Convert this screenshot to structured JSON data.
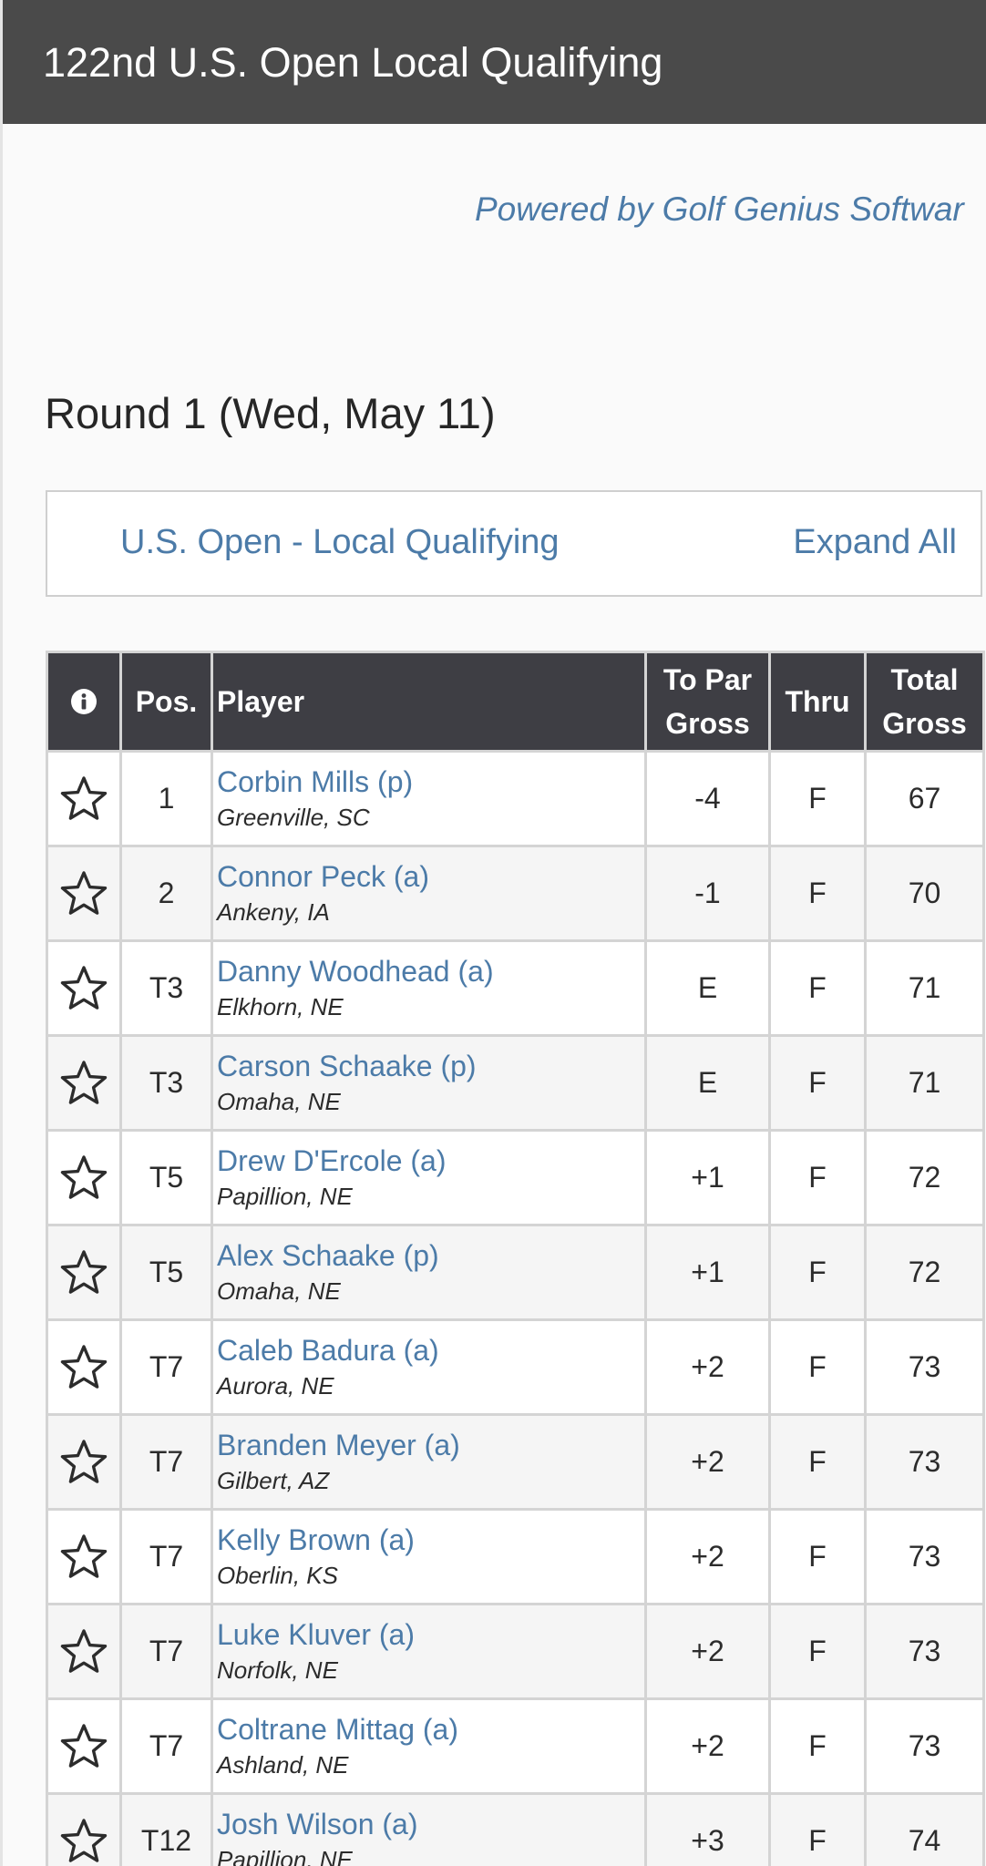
{
  "header": {
    "title": "122nd U.S. Open Local Qualifying"
  },
  "powered_by": "Powered by Golf Genius Softwar",
  "round_title": "Round 1 (Wed, May 11)",
  "division": {
    "name": "U.S. Open - Local Qualifying",
    "expand_label": "Expand All"
  },
  "table": {
    "columns": {
      "info_icon": "info-icon",
      "pos": "Pos.",
      "player": "Player",
      "to_par_line1": "To Par",
      "to_par_line2": "Gross",
      "thru": "Thru",
      "total_line1": "Total",
      "total_line2": "Gross"
    },
    "row_icon": "star-outline-icon",
    "colors": {
      "under_par": "#d03a2c",
      "even_par": "#3fa02c",
      "over_par": "#1f1fa8",
      "link": "#4c7ba8",
      "header_bg": "#3e3e44"
    },
    "rows": [
      {
        "pos": "1",
        "name": "Corbin Mills (p)",
        "location": "Greenville, SC",
        "to_par": "-4",
        "thru": "F",
        "total": "67",
        "status": "under"
      },
      {
        "pos": "2",
        "name": "Connor Peck (a)",
        "location": "Ankeny, IA",
        "to_par": "-1",
        "thru": "F",
        "total": "70",
        "status": "under"
      },
      {
        "pos": "T3",
        "name": "Danny Woodhead (a)",
        "location": "Elkhorn, NE",
        "to_par": "E",
        "thru": "F",
        "total": "71",
        "status": "even"
      },
      {
        "pos": "T3",
        "name": "Carson Schaake (p)",
        "location": "Omaha, NE",
        "to_par": "E",
        "thru": "F",
        "total": "71",
        "status": "even"
      },
      {
        "pos": "T5",
        "name": "Drew D'Ercole (a)",
        "location": "Papillion, NE",
        "to_par": "+1",
        "thru": "F",
        "total": "72",
        "status": "over"
      },
      {
        "pos": "T5",
        "name": "Alex Schaake (p)",
        "location": "Omaha, NE",
        "to_par": "+1",
        "thru": "F",
        "total": "72",
        "status": "over"
      },
      {
        "pos": "T7",
        "name": "Caleb Badura (a)",
        "location": "Aurora, NE",
        "to_par": "+2",
        "thru": "F",
        "total": "73",
        "status": "over"
      },
      {
        "pos": "T7",
        "name": "Branden Meyer (a)",
        "location": "Gilbert, AZ",
        "to_par": "+2",
        "thru": "F",
        "total": "73",
        "status": "over"
      },
      {
        "pos": "T7",
        "name": "Kelly Brown (a)",
        "location": "Oberlin, KS",
        "to_par": "+2",
        "thru": "F",
        "total": "73",
        "status": "over"
      },
      {
        "pos": "T7",
        "name": "Luke Kluver (a)",
        "location": "Norfolk, NE",
        "to_par": "+2",
        "thru": "F",
        "total": "73",
        "status": "over"
      },
      {
        "pos": "T7",
        "name": "Coltrane Mittag (a)",
        "location": "Ashland, NE",
        "to_par": "+2",
        "thru": "F",
        "total": "73",
        "status": "over"
      },
      {
        "pos": "T12",
        "name": "Josh Wilson (a)",
        "location": "Papillion, NE",
        "to_par": "+3",
        "thru": "F",
        "total": "74",
        "status": "over"
      }
    ]
  }
}
